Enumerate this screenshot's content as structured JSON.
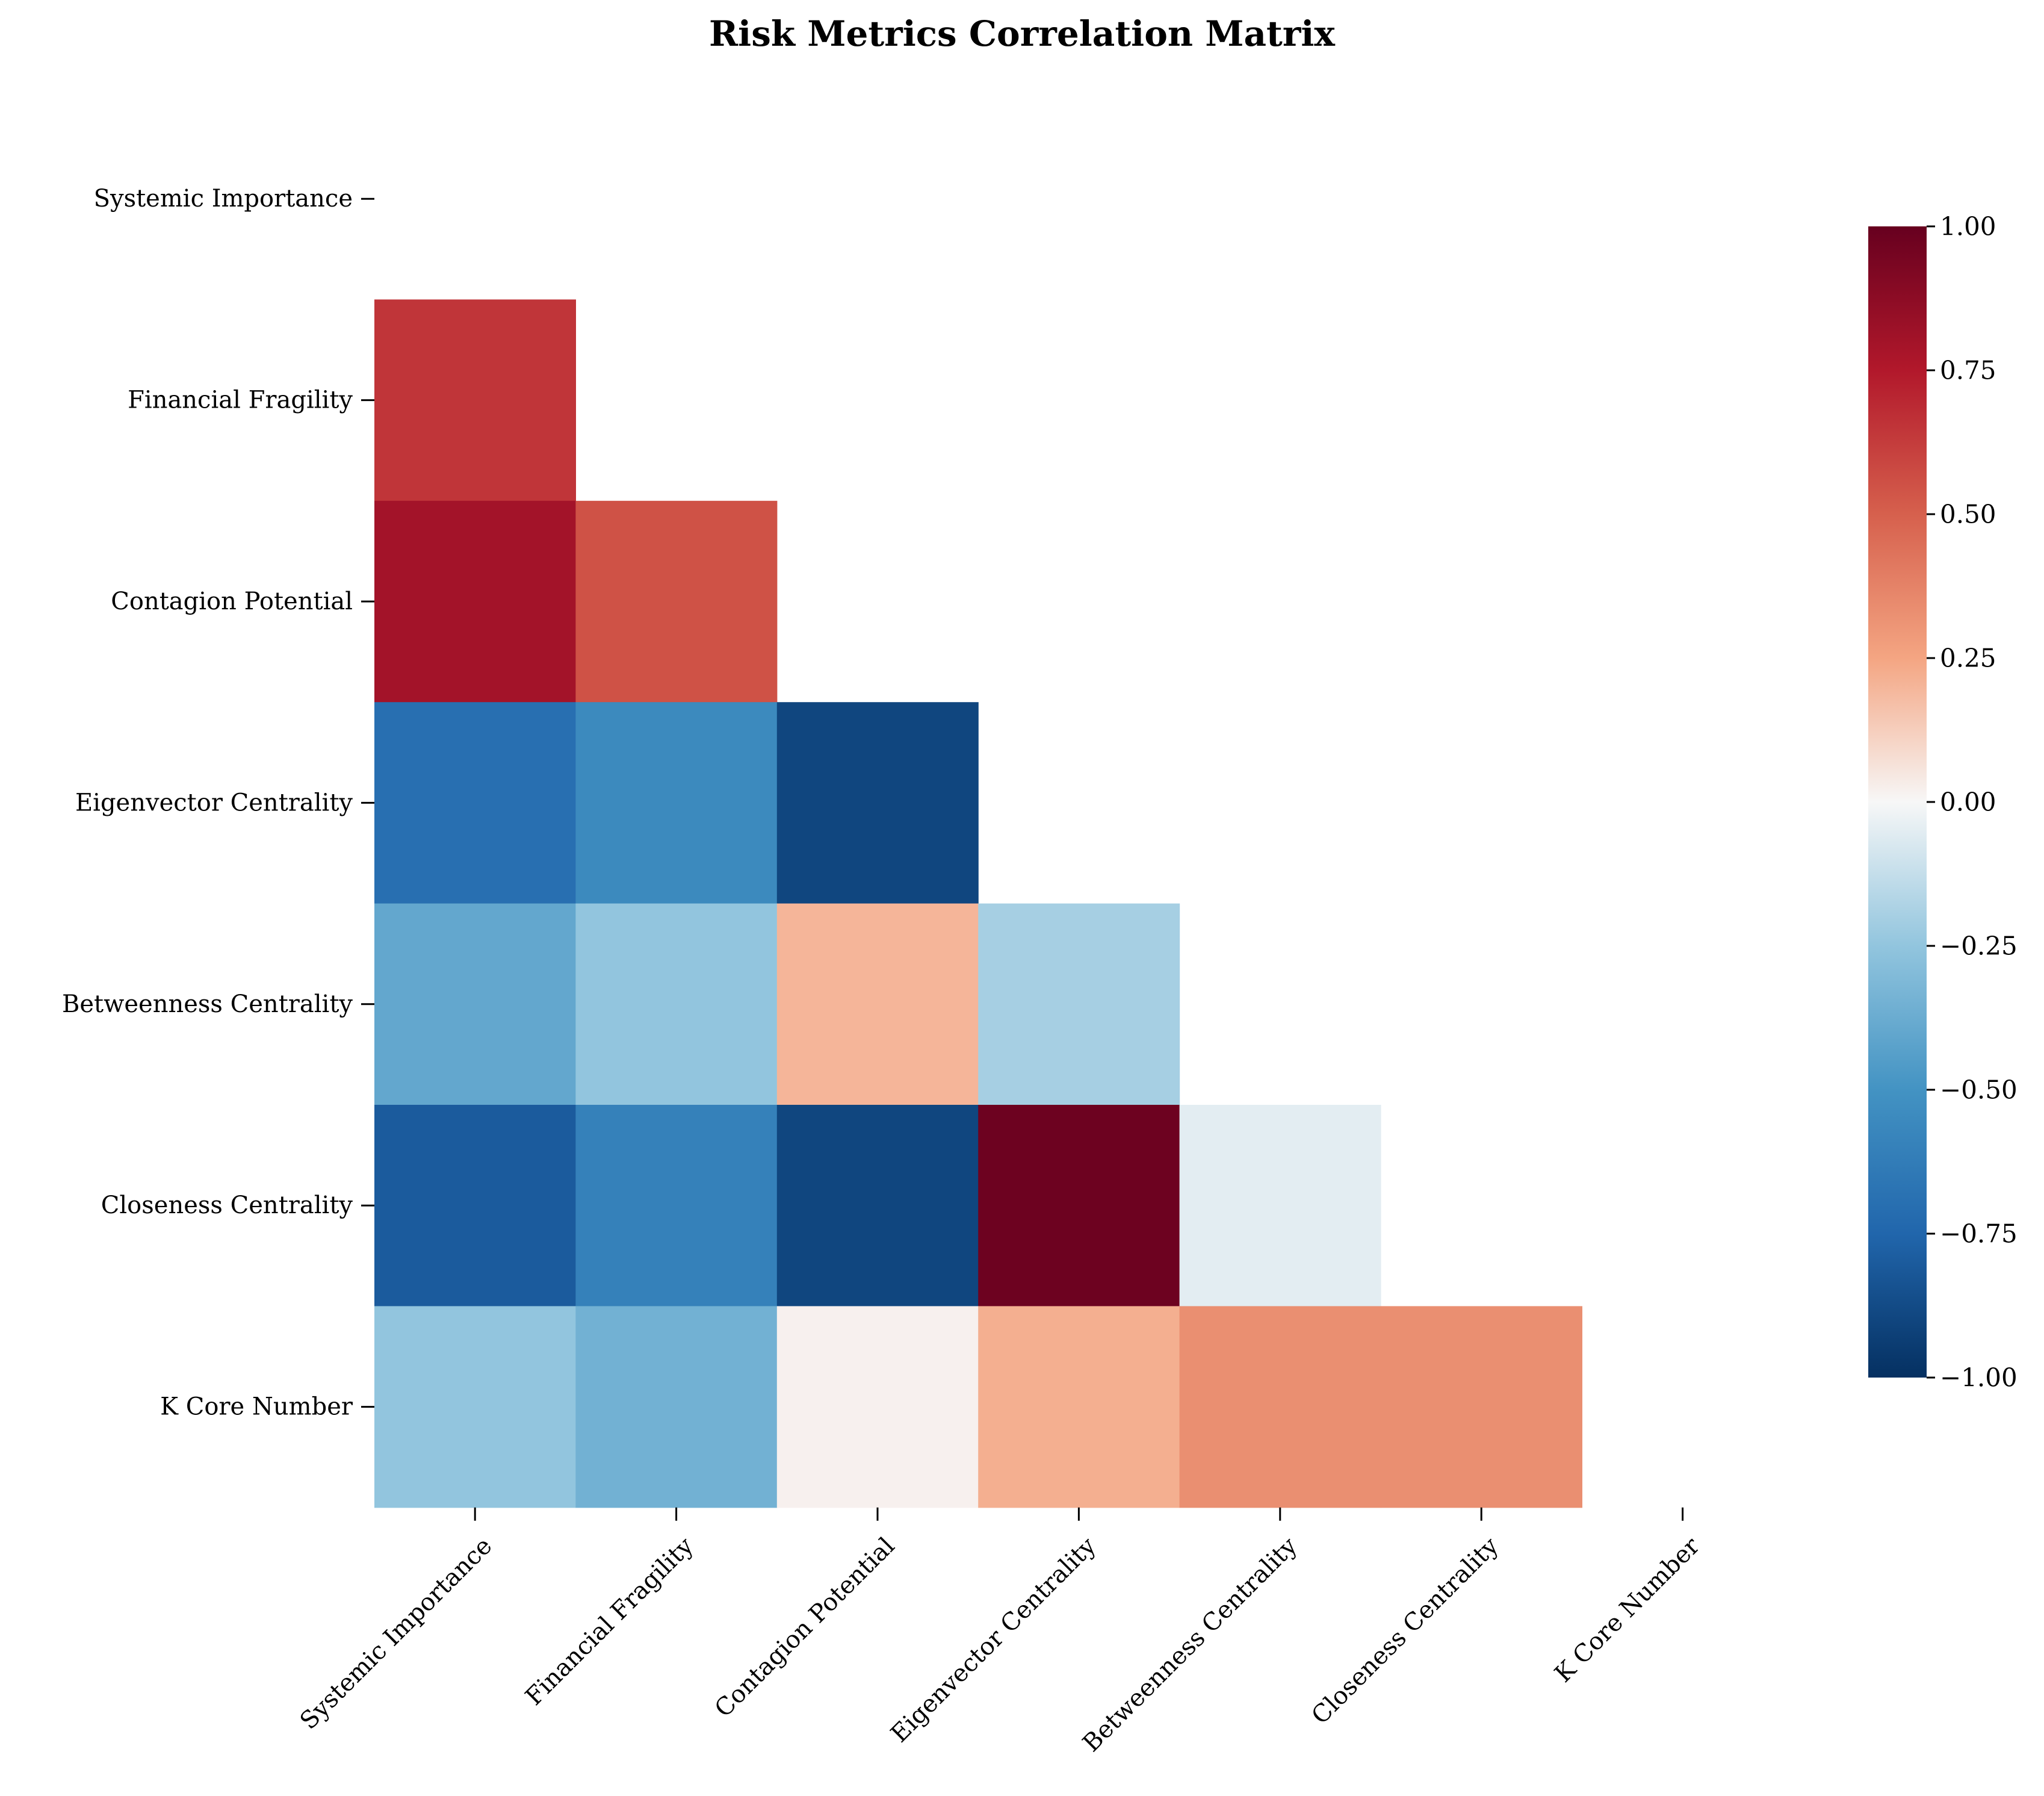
{
  "chart_data": {
    "type": "heatmap",
    "title": "Risk Metrics Correlation Matrix",
    "labels": [
      "Systemic Importance",
      "Financial Fragility",
      "Contagion Potential",
      "Eigenvector Centrality",
      "Betweenness Centrality",
      "Closeness Centrality",
      "K Core Number"
    ],
    "mask": "upper-triangle-including-diagonal",
    "matrix": [
      [
        null,
        null,
        null,
        null,
        null,
        null,
        null
      ],
      [
        0.65,
        null,
        null,
        null,
        null,
        null,
        null
      ],
      [
        0.8,
        0.55,
        null,
        null,
        null,
        null,
        null
      ],
      [
        -0.7,
        -0.55,
        -0.9,
        null,
        null,
        null,
        null
      ],
      [
        -0.4,
        -0.25,
        0.2,
        -0.2,
        null,
        null,
        null
      ],
      [
        -0.8,
        -0.6,
        -0.9,
        0.98,
        -0.05,
        null,
        null
      ],
      [
        -0.25,
        -0.35,
        0.02,
        0.22,
        0.33,
        0.33,
        null
      ]
    ],
    "colorbar": {
      "colormap": "RdBu_r",
      "vmin": -1.0,
      "vmax": 1.0,
      "ticks": [
        "−1.00",
        "−0.75",
        "−0.50",
        "−0.25",
        "0.00",
        "0.25",
        "0.50",
        "0.75",
        "1.00"
      ]
    }
  }
}
